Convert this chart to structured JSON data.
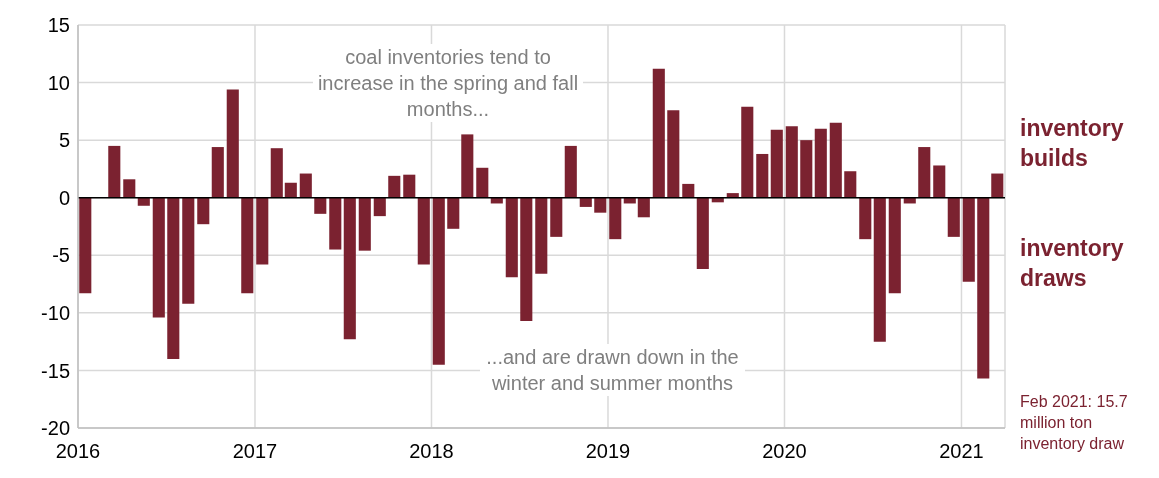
{
  "chart_data": {
    "type": "bar",
    "color": "#7b2230",
    "x": [
      "2016-01-16",
      "2016-02-15",
      "2016-03-16",
      "2016-04-16",
      "2016-05-16",
      "2016-06-16",
      "2016-07-16",
      "2016-08-16",
      "2016-09-16",
      "2016-10-16",
      "2016-11-16",
      "2016-12-16",
      "2017-01-16",
      "2017-02-15",
      "2017-03-16",
      "2017-04-16",
      "2017-05-16",
      "2017-06-16",
      "2017-07-16",
      "2017-08-16",
      "2017-09-16",
      "2017-10-16",
      "2017-11-16",
      "2017-12-16",
      "2018-01-16",
      "2018-02-15",
      "2018-03-16",
      "2018-04-16",
      "2018-05-16",
      "2018-06-16",
      "2018-07-16",
      "2018-08-16",
      "2018-09-16",
      "2018-10-16",
      "2018-11-16",
      "2018-12-16",
      "2019-01-16",
      "2019-02-15",
      "2019-03-16",
      "2019-04-16",
      "2019-05-16",
      "2019-06-16",
      "2019-07-16",
      "2019-08-16",
      "2019-09-16",
      "2019-10-16",
      "2019-11-16",
      "2019-12-16",
      "2020-01-16",
      "2020-02-15",
      "2020-03-16",
      "2020-04-16",
      "2020-05-16",
      "2020-06-16",
      "2020-07-16",
      "2020-08-16",
      "2020-09-16",
      "2020-10-16",
      "2020-11-16",
      "2020-12-16",
      "2021-01-16",
      "2021-02-15",
      "2021-03-16"
    ],
    "values": [
      -8.3,
      0,
      4.5,
      1.6,
      -0.7,
      -10.4,
      -14.0,
      -9.2,
      -2.3,
      4.4,
      9.4,
      -8.3,
      -5.8,
      4.3,
      1.3,
      2.1,
      -1.4,
      -4.5,
      -12.3,
      -4.6,
      -1.6,
      1.9,
      2.0,
      -5.8,
      -14.5,
      -2.7,
      5.5,
      2.6,
      -0.5,
      -6.9,
      -10.7,
      -6.6,
      -3.4,
      4.5,
      -0.8,
      -1.3,
      -3.6,
      -0.5,
      -1.7,
      11.2,
      7.6,
      1.2,
      -6.2,
      -0.4,
      0.4,
      7.9,
      3.8,
      5.9,
      6.2,
      5.0,
      6.0,
      6.5,
      2.3,
      -3.6,
      -12.5,
      -8.3,
      -0.5,
      4.4,
      2.8,
      -3.4,
      -7.3,
      -15.7,
      2.1
    ],
    "xlim": [
      "2016",
      "2021-04"
    ],
    "xticks": [
      "2016",
      "2017",
      "2018",
      "2019",
      "2020",
      "2021"
    ],
    "ylim": [
      -20,
      15
    ],
    "yticks": [
      -20,
      -15,
      -10,
      -5,
      0,
      5,
      10,
      15
    ],
    "grid": true,
    "annotations": [
      "coal inventories tend to increase in the spring and fall months...",
      "...and are drawn down in the winter and summer months",
      "inventory builds",
      "inventory draws",
      "Feb 2021: 15.7 million ton inventory draw"
    ]
  }
}
